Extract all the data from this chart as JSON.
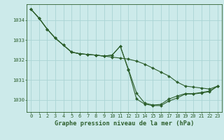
{
  "title": "Graphe pression niveau de la mer (hPa)",
  "background_color": "#cceaea",
  "grid_color": "#aad4d4",
  "line_color": "#2d5f2d",
  "xlim": [
    -0.5,
    23.5
  ],
  "ylim": [
    1029.4,
    1034.8
  ],
  "yticks": [
    1030,
    1031,
    1032,
    1033,
    1034
  ],
  "xticks": [
    0,
    1,
    2,
    3,
    4,
    5,
    6,
    7,
    8,
    9,
    10,
    11,
    12,
    13,
    14,
    15,
    16,
    17,
    18,
    19,
    20,
    21,
    22,
    23
  ],
  "line1_x": [
    0,
    1,
    2,
    3,
    4,
    5,
    6,
    7,
    8,
    9,
    10,
    11,
    12,
    13,
    14,
    15,
    16,
    17,
    18,
    19,
    20,
    21,
    22,
    23
  ],
  "line1_y": [
    1034.55,
    1034.1,
    1033.55,
    1033.1,
    1032.75,
    1032.4,
    1032.32,
    1032.28,
    1032.25,
    1032.2,
    1032.15,
    1032.1,
    1032.05,
    1031.95,
    1031.8,
    1031.6,
    1031.4,
    1031.2,
    1030.9,
    1030.7,
    1030.65,
    1030.6,
    1030.55,
    1030.7
  ],
  "line2_x": [
    0,
    1,
    2,
    3,
    4,
    5,
    6,
    7,
    8,
    9,
    10,
    11,
    12,
    13,
    14,
    15,
    16,
    17,
    18,
    19,
    20,
    21,
    22,
    23
  ],
  "line2_y": [
    1034.55,
    1034.1,
    1033.55,
    1033.1,
    1032.75,
    1032.4,
    1032.32,
    1032.28,
    1032.25,
    1032.2,
    1032.25,
    1032.7,
    1031.55,
    1030.35,
    1029.85,
    1029.75,
    1029.78,
    1030.05,
    1030.2,
    1030.32,
    1030.32,
    1030.38,
    1030.45,
    1030.7
  ],
  "line3_x": [
    0,
    1,
    2,
    3,
    4,
    5,
    6,
    7,
    8,
    9,
    10,
    11,
    12,
    13,
    14,
    15,
    16,
    17,
    18,
    19,
    20,
    21,
    22,
    23
  ],
  "line3_y": [
    1034.55,
    1034.1,
    1033.55,
    1033.1,
    1032.75,
    1032.4,
    1032.32,
    1032.28,
    1032.25,
    1032.2,
    1032.25,
    1032.7,
    1031.5,
    1030.05,
    1029.8,
    1029.72,
    1029.72,
    1029.95,
    1030.1,
    1030.3,
    1030.3,
    1030.35,
    1030.42,
    1030.7
  ],
  "lw": 0.8,
  "ms": 2.0,
  "tick_fontsize": 5.0,
  "xlabel_fontsize": 6.2,
  "ylabel_fontsize": 5.5
}
